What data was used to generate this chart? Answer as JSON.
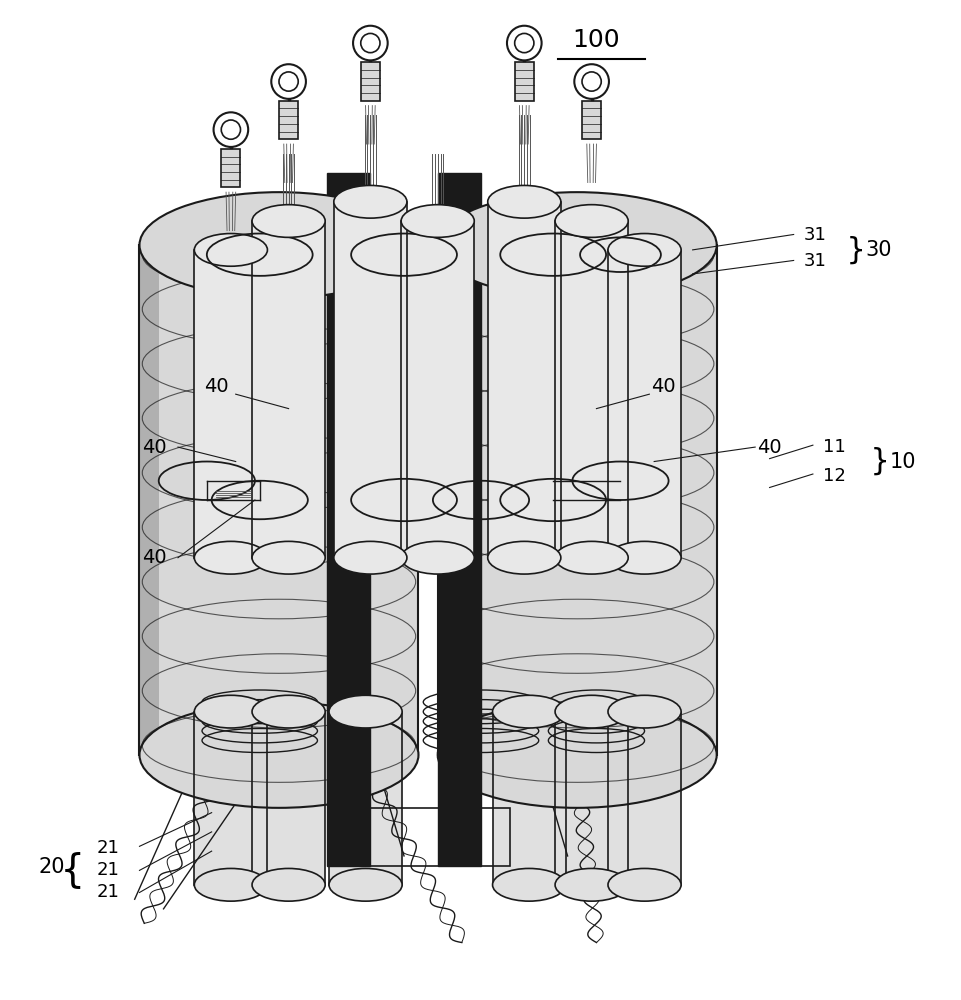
{
  "background_color": "#ffffff",
  "line_color": "#1a1a1a",
  "label_color": "#000000",
  "gray_light": "#e0e0e0",
  "gray_mid": "#c8c8c8",
  "gray_dark": "#a0a0a0",
  "gray_body": "#d8d8d8",
  "gray_shade": "#b0b0b0",
  "black_fill": "#1a1a1a",
  "strand_color": "#555555",
  "white": "#ffffff"
}
